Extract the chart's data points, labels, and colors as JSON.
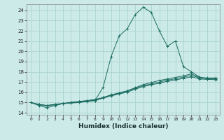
{
  "xlabel": "Humidex (Indice chaleur)",
  "bg_color": "#cceae8",
  "grid_color": "#aad4d0",
  "line_color": "#1a6b60",
  "xlim": [
    -0.5,
    23.5
  ],
  "ylim": [
    13.8,
    24.6
  ],
  "yticks": [
    14,
    15,
    16,
    17,
    18,
    19,
    20,
    21,
    22,
    23,
    24
  ],
  "xticks": [
    0,
    1,
    2,
    3,
    4,
    5,
    6,
    7,
    8,
    9,
    10,
    11,
    12,
    13,
    14,
    15,
    16,
    17,
    18,
    19,
    20,
    21,
    22,
    23
  ],
  "series": [
    {
      "x": [
        0,
        1,
        2,
        3,
        4,
        5,
        6,
        7,
        8,
        9,
        10,
        11,
        12,
        13,
        14,
        15,
        16,
        17,
        18,
        19,
        20,
        21,
        22,
        23
      ],
      "y": [
        15.0,
        14.7,
        14.5,
        14.7,
        14.9,
        14.95,
        15.0,
        15.1,
        15.2,
        16.5,
        19.5,
        21.5,
        22.2,
        23.6,
        24.3,
        23.8,
        22.0,
        20.5,
        21.0,
        18.5,
        18.0,
        17.5,
        17.3,
        17.3
      ]
    },
    {
      "x": [
        0,
        1,
        2,
        3,
        4,
        5,
        6,
        7,
        8,
        9,
        10,
        11,
        12,
        13,
        14,
        15,
        16,
        17,
        18,
        19,
        20,
        21,
        22,
        23
      ],
      "y": [
        15.0,
        14.8,
        14.7,
        14.8,
        14.9,
        15.0,
        15.1,
        15.2,
        15.3,
        15.5,
        15.75,
        15.95,
        16.15,
        16.45,
        16.75,
        16.95,
        17.15,
        17.3,
        17.45,
        17.6,
        17.8,
        17.45,
        17.4,
        17.4
      ]
    },
    {
      "x": [
        0,
        1,
        2,
        3,
        4,
        5,
        6,
        7,
        8,
        9,
        10,
        11,
        12,
        13,
        14,
        15,
        16,
        17,
        18,
        19,
        20,
        21,
        22,
        23
      ],
      "y": [
        15.0,
        14.82,
        14.72,
        14.82,
        14.92,
        15.02,
        15.08,
        15.14,
        15.25,
        15.48,
        15.72,
        15.9,
        16.1,
        16.38,
        16.65,
        16.82,
        17.0,
        17.18,
        17.32,
        17.48,
        17.65,
        17.4,
        17.36,
        17.33
      ]
    },
    {
      "x": [
        0,
        1,
        2,
        3,
        4,
        5,
        6,
        7,
        8,
        9,
        10,
        11,
        12,
        13,
        14,
        15,
        16,
        17,
        18,
        19,
        20,
        21,
        22,
        23
      ],
      "y": [
        15.0,
        14.78,
        14.68,
        14.78,
        14.88,
        14.98,
        15.04,
        15.1,
        15.2,
        15.42,
        15.65,
        15.83,
        16.02,
        16.3,
        16.56,
        16.72,
        16.9,
        17.07,
        17.2,
        17.36,
        17.52,
        17.3,
        17.26,
        17.23
      ]
    }
  ]
}
